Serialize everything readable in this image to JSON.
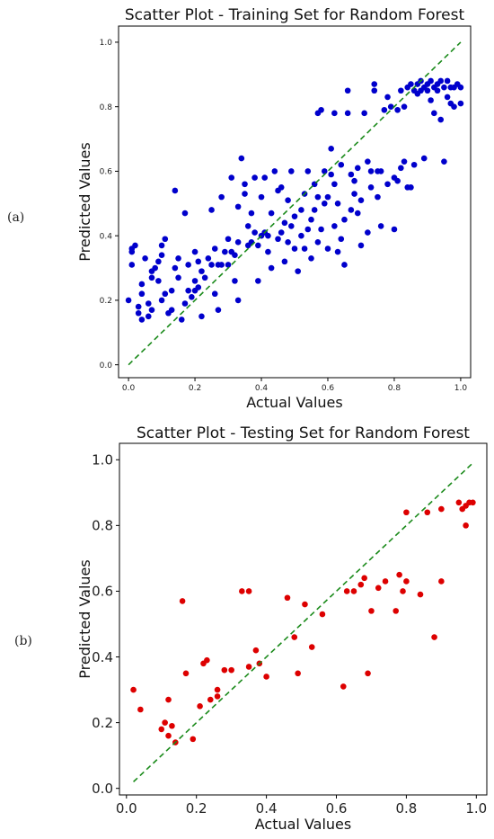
{
  "panel_labels": [
    "(a)",
    "(b)"
  ],
  "chart_data": [
    {
      "type": "scatter",
      "title": "Scatter Plot - Training Set for Random Forest",
      "xlabel": "Actual Values",
      "ylabel": "Predicted Values",
      "xlim": [
        -0.03,
        1.03
      ],
      "ylim": [
        -0.04,
        1.05
      ],
      "xticks": [
        "0.0",
        "0.2",
        "0.4",
        "0.6",
        "0.8",
        "1.0"
      ],
      "yticks": [
        "0.0",
        "0.2",
        "0.4",
        "0.6",
        "0.8",
        "1.0"
      ],
      "point_color": "#0000cc",
      "diagonal_color": "#1a8a1a",
      "diagonal": [
        [
          0,
          0
        ],
        [
          1,
          1
        ]
      ],
      "points": [
        [
          0.0,
          0.2
        ],
        [
          0.01,
          0.31
        ],
        [
          0.01,
          0.35
        ],
        [
          0.01,
          0.36
        ],
        [
          0.02,
          0.37
        ],
        [
          0.03,
          0.16
        ],
        [
          0.03,
          0.18
        ],
        [
          0.04,
          0.14
        ],
        [
          0.04,
          0.22
        ],
        [
          0.04,
          0.25
        ],
        [
          0.05,
          0.33
        ],
        [
          0.06,
          0.15
        ],
        [
          0.06,
          0.19
        ],
        [
          0.07,
          0.17
        ],
        [
          0.07,
          0.27
        ],
        [
          0.07,
          0.29
        ],
        [
          0.08,
          0.3
        ],
        [
          0.09,
          0.26
        ],
        [
          0.09,
          0.32
        ],
        [
          0.1,
          0.2
        ],
        [
          0.1,
          0.34
        ],
        [
          0.1,
          0.37
        ],
        [
          0.11,
          0.22
        ],
        [
          0.11,
          0.39
        ],
        [
          0.12,
          0.16
        ],
        [
          0.13,
          0.17
        ],
        [
          0.13,
          0.23
        ],
        [
          0.14,
          0.3
        ],
        [
          0.14,
          0.54
        ],
        [
          0.15,
          0.27
        ],
        [
          0.15,
          0.33
        ],
        [
          0.16,
          0.14
        ],
        [
          0.17,
          0.19
        ],
        [
          0.17,
          0.47
        ],
        [
          0.18,
          0.23
        ],
        [
          0.18,
          0.31
        ],
        [
          0.19,
          0.21
        ],
        [
          0.2,
          0.23
        ],
        [
          0.2,
          0.26
        ],
        [
          0.2,
          0.35
        ],
        [
          0.21,
          0.24
        ],
        [
          0.21,
          0.32
        ],
        [
          0.22,
          0.15
        ],
        [
          0.22,
          0.29
        ],
        [
          0.23,
          0.27
        ],
        [
          0.24,
          0.33
        ],
        [
          0.25,
          0.31
        ],
        [
          0.25,
          0.48
        ],
        [
          0.26,
          0.22
        ],
        [
          0.26,
          0.36
        ],
        [
          0.27,
          0.17
        ],
        [
          0.27,
          0.31
        ],
        [
          0.28,
          0.31
        ],
        [
          0.28,
          0.52
        ],
        [
          0.29,
          0.35
        ],
        [
          0.3,
          0.31
        ],
        [
          0.3,
          0.39
        ],
        [
          0.31,
          0.35
        ],
        [
          0.31,
          0.58
        ],
        [
          0.32,
          0.26
        ],
        [
          0.32,
          0.34
        ],
        [
          0.33,
          0.2
        ],
        [
          0.33,
          0.38
        ],
        [
          0.33,
          0.49
        ],
        [
          0.34,
          0.64
        ],
        [
          0.35,
          0.53
        ],
        [
          0.35,
          0.56
        ],
        [
          0.36,
          0.37
        ],
        [
          0.36,
          0.43
        ],
        [
          0.37,
          0.38
        ],
        [
          0.37,
          0.47
        ],
        [
          0.38,
          0.41
        ],
        [
          0.38,
          0.58
        ],
        [
          0.39,
          0.26
        ],
        [
          0.39,
          0.37
        ],
        [
          0.4,
          0.4
        ],
        [
          0.4,
          0.52
        ],
        [
          0.41,
          0.41
        ],
        [
          0.41,
          0.58
        ],
        [
          0.42,
          0.35
        ],
        [
          0.42,
          0.4
        ],
        [
          0.43,
          0.3
        ],
        [
          0.43,
          0.47
        ],
        [
          0.44,
          0.6
        ],
        [
          0.45,
          0.39
        ],
        [
          0.45,
          0.54
        ],
        [
          0.46,
          0.41
        ],
        [
          0.46,
          0.55
        ],
        [
          0.47,
          0.32
        ],
        [
          0.47,
          0.44
        ],
        [
          0.48,
          0.38
        ],
        [
          0.48,
          0.51
        ],
        [
          0.49,
          0.43
        ],
        [
          0.49,
          0.6
        ],
        [
          0.5,
          0.36
        ],
        [
          0.5,
          0.46
        ],
        [
          0.51,
          0.29
        ],
        [
          0.52,
          0.4
        ],
        [
          0.52,
          0.48
        ],
        [
          0.53,
          0.36
        ],
        [
          0.53,
          0.53
        ],
        [
          0.54,
          0.42
        ],
        [
          0.54,
          0.6
        ],
        [
          0.55,
          0.33
        ],
        [
          0.55,
          0.45
        ],
        [
          0.56,
          0.48
        ],
        [
          0.56,
          0.56
        ],
        [
          0.57,
          0.38
        ],
        [
          0.57,
          0.52
        ],
        [
          0.57,
          0.78
        ],
        [
          0.58,
          0.42
        ],
        [
          0.58,
          0.79
        ],
        [
          0.59,
          0.5
        ],
        [
          0.59,
          0.6
        ],
        [
          0.6,
          0.36
        ],
        [
          0.6,
          0.52
        ],
        [
          0.61,
          0.59
        ],
        [
          0.61,
          0.67
        ],
        [
          0.62,
          0.43
        ],
        [
          0.62,
          0.56
        ],
        [
          0.62,
          0.78
        ],
        [
          0.63,
          0.35
        ],
        [
          0.63,
          0.5
        ],
        [
          0.64,
          0.39
        ],
        [
          0.64,
          0.62
        ],
        [
          0.65,
          0.31
        ],
        [
          0.65,
          0.45
        ],
        [
          0.66,
          0.78
        ],
        [
          0.66,
          0.85
        ],
        [
          0.67,
          0.48
        ],
        [
          0.67,
          0.59
        ],
        [
          0.68,
          0.53
        ],
        [
          0.68,
          0.57
        ],
        [
          0.69,
          0.47
        ],
        [
          0.69,
          0.61
        ],
        [
          0.7,
          0.37
        ],
        [
          0.7,
          0.51
        ],
        [
          0.71,
          0.78
        ],
        [
          0.72,
          0.41
        ],
        [
          0.72,
          0.63
        ],
        [
          0.73,
          0.55
        ],
        [
          0.73,
          0.6
        ],
        [
          0.74,
          0.85
        ],
        [
          0.74,
          0.87
        ],
        [
          0.75,
          0.6
        ],
        [
          0.75,
          0.52
        ],
        [
          0.76,
          0.43
        ],
        [
          0.76,
          0.6
        ],
        [
          0.77,
          0.79
        ],
        [
          0.78,
          0.56
        ],
        [
          0.78,
          0.83
        ],
        [
          0.79,
          0.8
        ],
        [
          0.8,
          0.58
        ],
        [
          0.8,
          0.42
        ],
        [
          0.81,
          0.79
        ],
        [
          0.81,
          0.57
        ],
        [
          0.82,
          0.61
        ],
        [
          0.82,
          0.85
        ],
        [
          0.83,
          0.63
        ],
        [
          0.83,
          0.8
        ],
        [
          0.84,
          0.55
        ],
        [
          0.84,
          0.86
        ],
        [
          0.85,
          0.55
        ],
        [
          0.85,
          0.87
        ],
        [
          0.86,
          0.85
        ],
        [
          0.86,
          0.62
        ],
        [
          0.87,
          0.87
        ],
        [
          0.87,
          0.84
        ],
        [
          0.88,
          0.88
        ],
        [
          0.88,
          0.85
        ],
        [
          0.89,
          0.86
        ],
        [
          0.89,
          0.64
        ],
        [
          0.9,
          0.87
        ],
        [
          0.9,
          0.85
        ],
        [
          0.91,
          0.88
        ],
        [
          0.91,
          0.82
        ],
        [
          0.92,
          0.86
        ],
        [
          0.92,
          0.78
        ],
        [
          0.93,
          0.87
        ],
        [
          0.93,
          0.85
        ],
        [
          0.94,
          0.76
        ],
        [
          0.94,
          0.88
        ],
        [
          0.95,
          0.63
        ],
        [
          0.95,
          0.86
        ],
        [
          0.96,
          0.83
        ],
        [
          0.96,
          0.88
        ],
        [
          0.97,
          0.86
        ],
        [
          0.97,
          0.81
        ],
        [
          0.98,
          0.8
        ],
        [
          0.98,
          0.86
        ],
        [
          0.99,
          0.87
        ],
        [
          1.0,
          0.86
        ],
        [
          1.0,
          0.81
        ]
      ]
    },
    {
      "type": "scatter",
      "title": "Scatter Plot - Testing Set for Random Forest",
      "xlabel": "Actual Values",
      "ylabel": "Predicted Values",
      "xlim": [
        -0.02,
        1.03
      ],
      "ylim": [
        -0.02,
        1.05
      ],
      "xticks": [
        "0.0",
        "0.2",
        "0.4",
        "0.6",
        "0.8",
        "1.0"
      ],
      "yticks": [
        "0.0",
        "0.2",
        "0.4",
        "0.6",
        "0.8",
        "1.0"
      ],
      "point_color": "#dd0000",
      "diagonal_color": "#1a8a1a",
      "diagonal": [
        [
          0.02,
          0.02
        ],
        [
          0.99,
          0.99
        ]
      ],
      "points": [
        [
          0.02,
          0.3
        ],
        [
          0.04,
          0.24
        ],
        [
          0.1,
          0.18
        ],
        [
          0.11,
          0.2
        ],
        [
          0.12,
          0.27
        ],
        [
          0.12,
          0.16
        ],
        [
          0.13,
          0.19
        ],
        [
          0.14,
          0.14
        ],
        [
          0.16,
          0.57
        ],
        [
          0.17,
          0.35
        ],
        [
          0.19,
          0.15
        ],
        [
          0.21,
          0.25
        ],
        [
          0.22,
          0.38
        ],
        [
          0.23,
          0.39
        ],
        [
          0.24,
          0.27
        ],
        [
          0.26,
          0.3
        ],
        [
          0.26,
          0.28
        ],
        [
          0.28,
          0.36
        ],
        [
          0.3,
          0.36
        ],
        [
          0.33,
          0.6
        ],
        [
          0.35,
          0.6
        ],
        [
          0.35,
          0.37
        ],
        [
          0.37,
          0.42
        ],
        [
          0.38,
          0.38
        ],
        [
          0.4,
          0.34
        ],
        [
          0.46,
          0.58
        ],
        [
          0.48,
          0.46
        ],
        [
          0.49,
          0.35
        ],
        [
          0.51,
          0.56
        ],
        [
          0.53,
          0.43
        ],
        [
          0.56,
          0.53
        ],
        [
          0.62,
          0.31
        ],
        [
          0.63,
          0.6
        ],
        [
          0.65,
          0.6
        ],
        [
          0.67,
          0.62
        ],
        [
          0.68,
          0.64
        ],
        [
          0.69,
          0.35
        ],
        [
          0.7,
          0.54
        ],
        [
          0.72,
          0.61
        ],
        [
          0.74,
          0.63
        ],
        [
          0.77,
          0.54
        ],
        [
          0.78,
          0.65
        ],
        [
          0.79,
          0.6
        ],
        [
          0.8,
          0.63
        ],
        [
          0.8,
          0.84
        ],
        [
          0.84,
          0.59
        ],
        [
          0.86,
          0.84
        ],
        [
          0.88,
          0.46
        ],
        [
          0.9,
          0.63
        ],
        [
          0.9,
          0.85
        ],
        [
          0.95,
          0.87
        ],
        [
          0.96,
          0.85
        ],
        [
          0.97,
          0.86
        ],
        [
          0.97,
          0.8
        ],
        [
          0.98,
          0.87
        ],
        [
          0.99,
          0.87
        ]
      ]
    }
  ]
}
